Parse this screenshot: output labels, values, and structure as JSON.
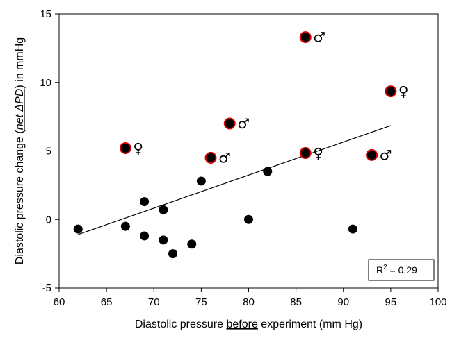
{
  "chart_data": {
    "type": "scatter",
    "xlabel_parts": [
      "Diastolic pressure ",
      "before",
      " experiment (mm Hg)"
    ],
    "ylabel_parts": [
      "Diastolic pressure change (",
      "net ΔPD",
      ") in mmHg"
    ],
    "xlim": [
      60,
      100
    ],
    "ylim": [
      -5,
      15
    ],
    "xticks": [
      60,
      65,
      70,
      75,
      80,
      85,
      90,
      95,
      100
    ],
    "yticks": [
      -5,
      0,
      5,
      10,
      15
    ],
    "grid": false,
    "marker_color": "#000000",
    "highlight_color": "#e00000",
    "points": [
      {
        "x": 62,
        "y": -0.7
      },
      {
        "x": 67,
        "y": -0.5
      },
      {
        "x": 69,
        "y": 1.3
      },
      {
        "x": 69,
        "y": -1.2
      },
      {
        "x": 71,
        "y": 0.7
      },
      {
        "x": 71,
        "y": -1.5
      },
      {
        "x": 72,
        "y": -2.5
      },
      {
        "x": 74,
        "y": -1.8
      },
      {
        "x": 75,
        "y": 2.8
      },
      {
        "x": 80,
        "y": 0.0
      },
      {
        "x": 82,
        "y": 3.5
      },
      {
        "x": 91,
        "y": -0.7
      },
      {
        "x": 67,
        "y": 5.2,
        "highlight": true,
        "sex": "♀"
      },
      {
        "x": 76,
        "y": 4.5,
        "highlight": true,
        "sex": "♂"
      },
      {
        "x": 78,
        "y": 7.0,
        "highlight": true,
        "sex": "♂"
      },
      {
        "x": 86,
        "y": 13.3,
        "highlight": true,
        "sex": "♂"
      },
      {
        "x": 86,
        "y": 4.85,
        "highlight": true,
        "sex": "♀"
      },
      {
        "x": 93,
        "y": 4.7,
        "highlight": true,
        "sex": "♂"
      },
      {
        "x": 95,
        "y": 9.35,
        "highlight": true,
        "sex": "♀"
      }
    ],
    "regression_line": {
      "x": [
        62,
        95
      ],
      "y": [
        -1.1,
        6.85
      ]
    },
    "annotation": {
      "label": "R",
      "superscript": "2",
      "value": " = 0.29"
    }
  }
}
